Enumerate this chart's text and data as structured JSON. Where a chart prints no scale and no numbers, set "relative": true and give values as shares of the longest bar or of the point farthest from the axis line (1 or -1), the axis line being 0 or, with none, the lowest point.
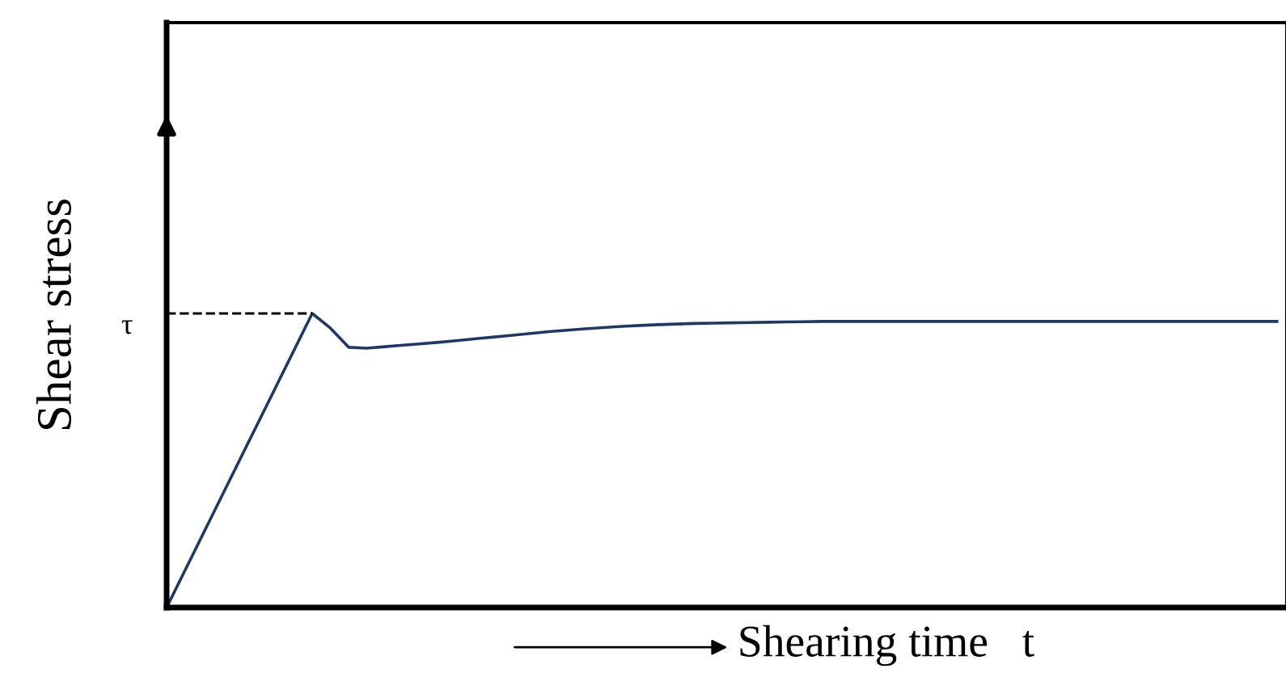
{
  "chart_data": {
    "type": "line",
    "relative": true,
    "xlabel": "Shearing time   t",
    "ylabel": "Shear stress",
    "categories": [
      null,
      null,
      null,
      null,
      null,
      null,
      null,
      null,
      null,
      null,
      null,
      null,
      null,
      null,
      null,
      null,
      null,
      null,
      null,
      null,
      null,
      null,
      null,
      null,
      null,
      null,
      null,
      null,
      null,
      null,
      null,
      null,
      null,
      null,
      null,
      null,
      null,
      null,
      null,
      null,
      null,
      null,
      null,
      null,
      null,
      null,
      null,
      null,
      null,
      null,
      null,
      null,
      null,
      null,
      null,
      null,
      null,
      null,
      null,
      null,
      null,
      null
    ],
    "series": [
      {
        "color": "#1f3864",
        "values": [
          0,
          0.125,
          0.25,
          0.375,
          0.5,
          0.625,
          0.75,
          0.875,
          1.0,
          0.95,
          0.885,
          0.882,
          0.887,
          0.892,
          0.897,
          0.902,
          0.908,
          0.914,
          0.92,
          0.926,
          0.932,
          0.938,
          0.943,
          0.948,
          0.952,
          0.956,
          0.959,
          0.962,
          0.964,
          0.966,
          0.967,
          0.968,
          0.969,
          0.97,
          0.971,
          0.972,
          0.973,
          0.973,
          0.973,
          0.973,
          0.973,
          0.973,
          0.973,
          0.973,
          0.973,
          0.973,
          0.973,
          0.973,
          0.973,
          0.973,
          0.973,
          0.973,
          0.973,
          0.973,
          0.973,
          0.973,
          0.973,
          0.973,
          0.973,
          0.973,
          0.973,
          0.973
        ]
      }
    ],
    "ref_lines": [
      {
        "axis": "y",
        "value": 1.0,
        "label": "τ",
        "color": "#000000",
        "line_style": "dashed"
      }
    ],
    "grid": false,
    "marker": "none",
    "line_style": "solid"
  }
}
